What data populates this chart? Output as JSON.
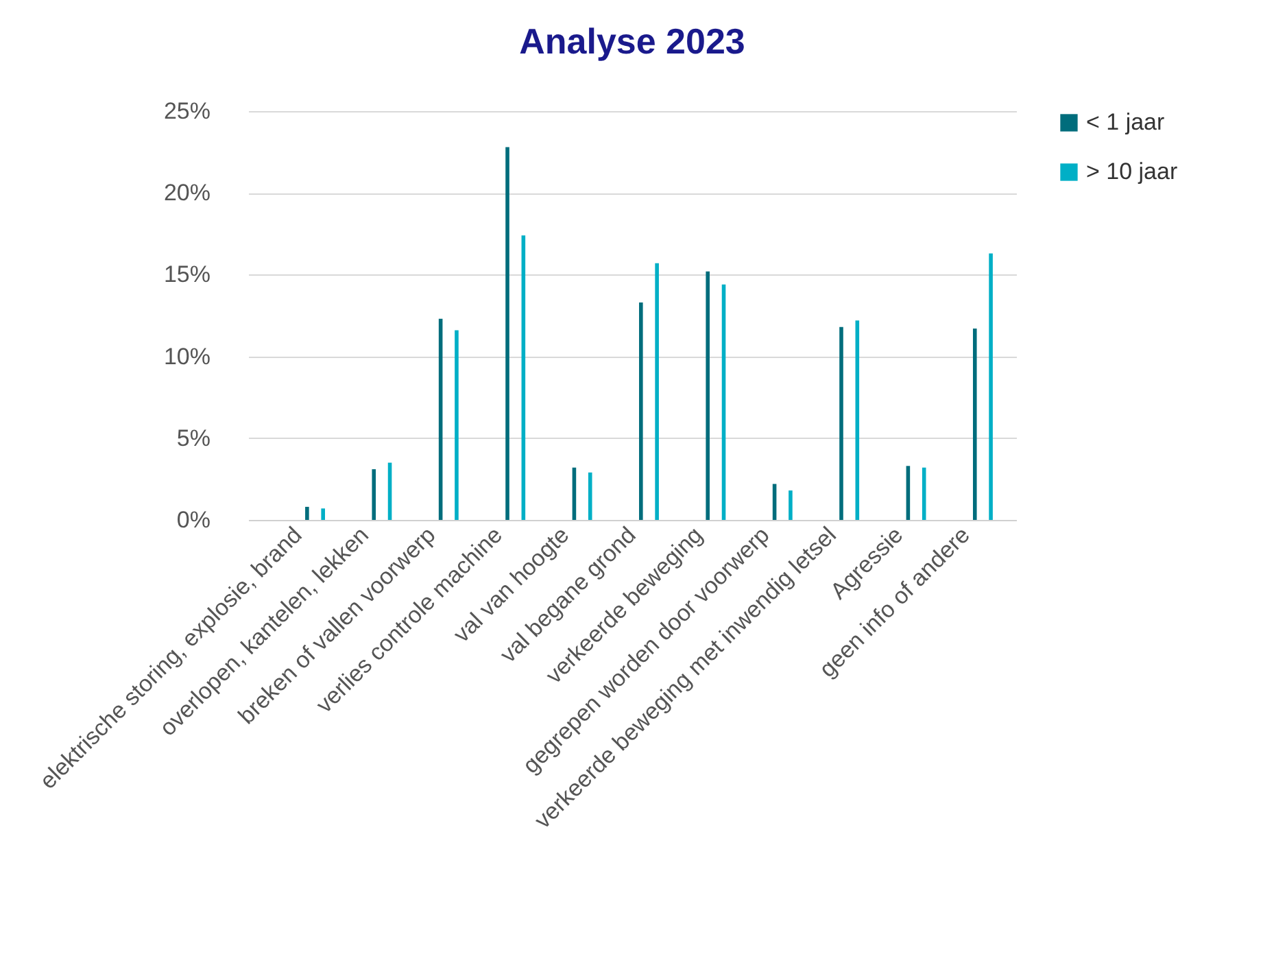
{
  "chart_data": {
    "type": "bar",
    "title": "Analyse 2023",
    "categories": [
      "elektrische storing, explosie, brand",
      "overlopen, kantelen, lekken",
      "breken of vallen voorwerp",
      "verlies controle machine",
      "val van hoogte",
      "val begane grond",
      "verkeerde beweging",
      "gegrepen worden door voorwerp",
      "verkeerde beweging met inwendig letsel",
      "Agressie",
      "geen info of andere"
    ],
    "series": [
      {
        "name": "< 1 jaar",
        "color": "#006d7c",
        "values": [
          0.8,
          3.1,
          12.3,
          22.8,
          3.2,
          13.3,
          15.2,
          2.2,
          11.8,
          3.3,
          11.7
        ]
      },
      {
        "name": "> 10 jaar",
        "color": "#00afc6",
        "values": [
          0.7,
          3.5,
          11.6,
          17.4,
          2.9,
          15.7,
          14.4,
          1.8,
          12.2,
          3.2,
          16.3
        ]
      }
    ],
    "ylim": [
      0,
      25
    ],
    "yticks": [
      {
        "value": 0,
        "label": "0%"
      },
      {
        "value": 5,
        "label": "5%"
      },
      {
        "value": 10,
        "label": "10%"
      },
      {
        "value": 15,
        "label": "15%"
      },
      {
        "value": 20,
        "label": "20%"
      },
      {
        "value": 25,
        "label": "25%"
      }
    ],
    "grid": "y",
    "legend": "right"
  }
}
